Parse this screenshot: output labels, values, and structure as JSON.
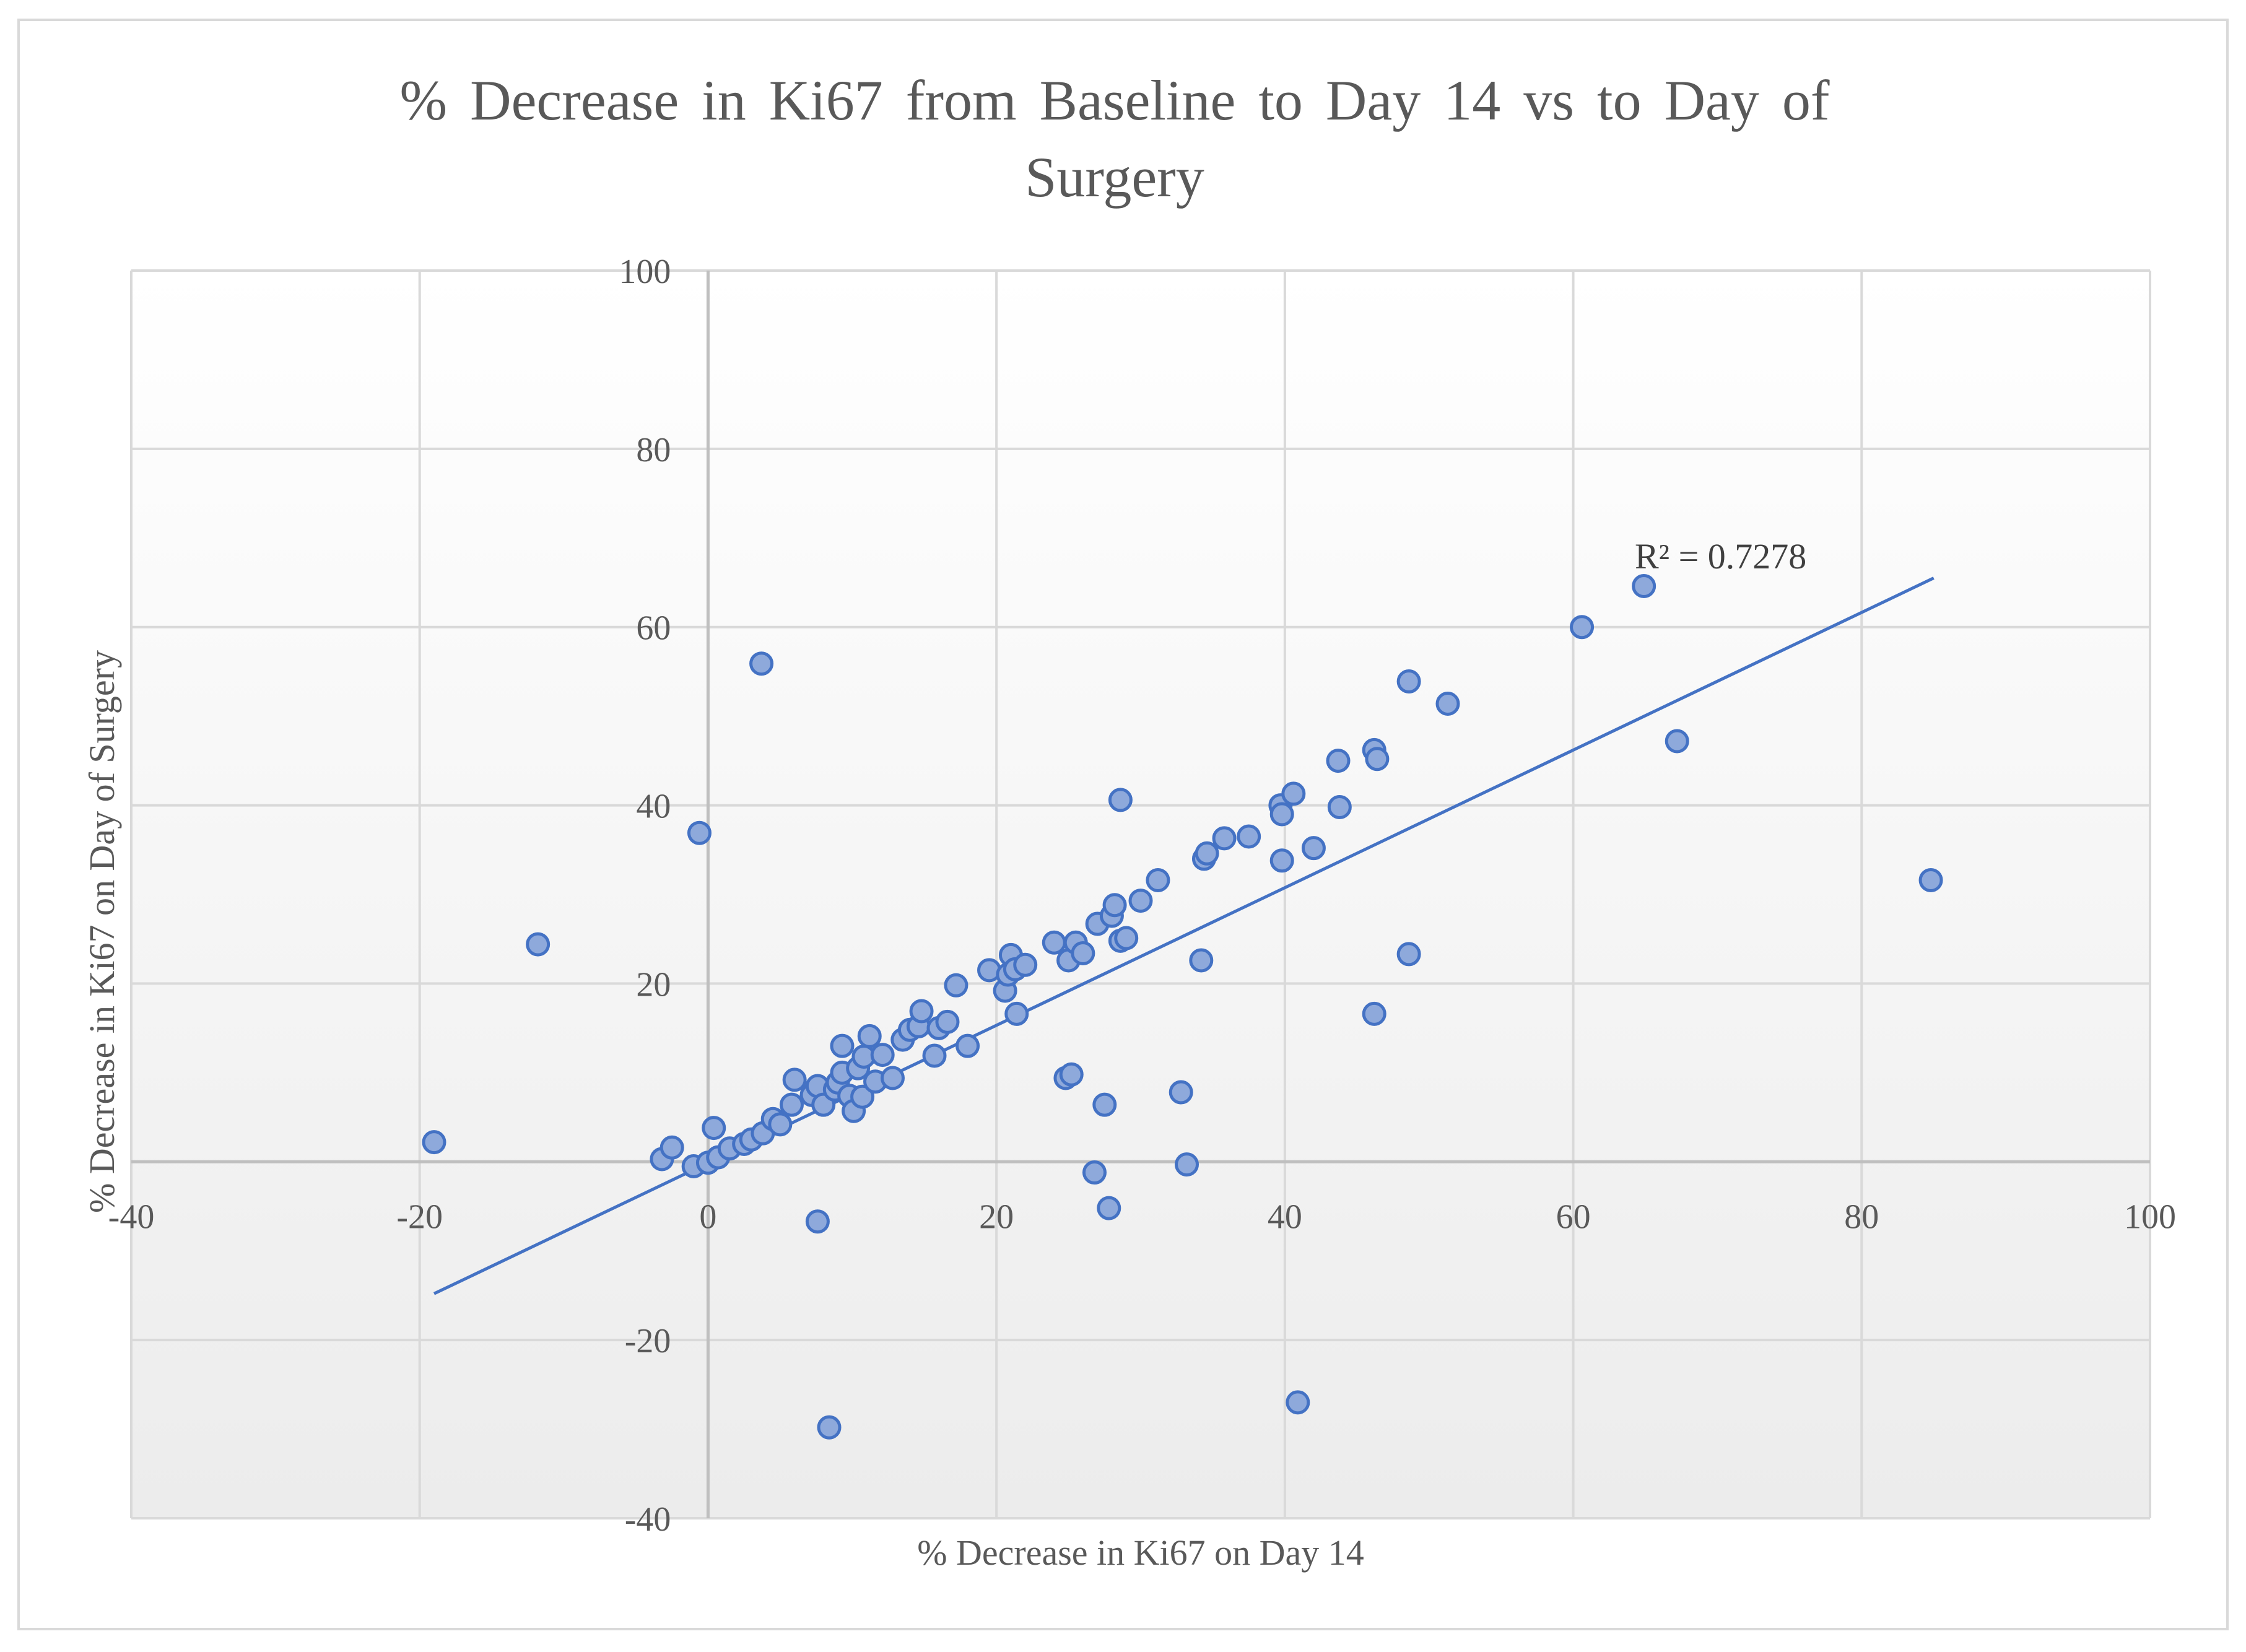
{
  "chart_data": {
    "type": "scatter",
    "title": "% Decrease in Ki67 from Baseline to Day 14 vs to Day of Surgery",
    "title_lines": [
      "% Decrease in Ki67 from Baseline to Day 14 vs to Day of",
      "Surgery"
    ],
    "xlabel": "% Decrease in Ki67 on Day 14",
    "ylabel": "% Decrease in Ki67 on Day of Surgery",
    "xlim": [
      -40,
      100
    ],
    "ylim": [
      -40,
      100
    ],
    "x_ticks": [
      -40,
      -20,
      0,
      20,
      40,
      60,
      80,
      100
    ],
    "y_ticks": [
      -40,
      -20,
      20,
      40,
      60,
      80,
      100
    ],
    "grid": true,
    "colors": {
      "marker_fill": "#8ea9db",
      "marker_stroke": "#4472c4",
      "trendline": "#4472c4",
      "grid": "#d9d9d9",
      "axis": "#bfbfbf"
    },
    "trendline": {
      "type": "linear",
      "x_range": [
        -19,
        85
      ],
      "y_range": [
        -14.8,
        65.5
      ],
      "r2_label": "R² = 0.7278"
    },
    "points": [
      [
        -19,
        2.2
      ],
      [
        -11.8,
        24.4
      ],
      [
        -3.2,
        0.3
      ],
      [
        -2.5,
        1.6
      ],
      [
        -1,
        -0.5
      ],
      [
        -0.6,
        36.9
      ],
      [
        0,
        -0.1
      ],
      [
        0.4,
        3.8
      ],
      [
        0.7,
        0.5
      ],
      [
        1.5,
        1.5
      ],
      [
        2.5,
        2
      ],
      [
        3,
        2.5
      ],
      [
        3.8,
        3.2
      ],
      [
        3.7,
        55.9
      ],
      [
        4.5,
        4.8
      ],
      [
        5,
        4.2
      ],
      [
        5.8,
        6.4
      ],
      [
        6,
        9.2
      ],
      [
        7.2,
        7.5
      ],
      [
        7.6,
        8.5
      ],
      [
        7.6,
        -6.7
      ],
      [
        8,
        6.4
      ],
      [
        8.4,
        -29.8
      ],
      [
        8.8,
        8.1
      ],
      [
        9,
        8.9
      ],
      [
        9.3,
        13
      ],
      [
        9.3,
        10
      ],
      [
        9.8,
        7.4
      ],
      [
        10.1,
        5.7
      ],
      [
        10.4,
        10.5
      ],
      [
        10.7,
        7.3
      ],
      [
        10.8,
        11.8
      ],
      [
        11.2,
        14.1
      ],
      [
        11.6,
        9
      ],
      [
        12.1,
        12
      ],
      [
        12.8,
        9.4
      ],
      [
        13.5,
        13.7
      ],
      [
        14,
        14.8
      ],
      [
        14.6,
        15.2
      ],
      [
        14.8,
        16.9
      ],
      [
        15.7,
        11.9
      ],
      [
        16,
        15
      ],
      [
        16.6,
        15.7
      ],
      [
        17.2,
        19.8
      ],
      [
        18,
        13
      ],
      [
        19.5,
        21.5
      ],
      [
        20.6,
        19.2
      ],
      [
        20.8,
        21
      ],
      [
        21,
        23.2
      ],
      [
        21.3,
        21.6
      ],
      [
        21.4,
        16.6
      ],
      [
        22,
        22.1
      ],
      [
        24,
        24.6
      ],
      [
        24.8,
        9.4
      ],
      [
        25,
        22.6
      ],
      [
        25.2,
        9.8
      ],
      [
        25.5,
        24.6
      ],
      [
        26,
        23.4
      ],
      [
        26.8,
        -1.2
      ],
      [
        27,
        26.7
      ],
      [
        27.5,
        6.4
      ],
      [
        27.8,
        -5.2
      ],
      [
        28,
        27.6
      ],
      [
        28.2,
        28.8
      ],
      [
        28.6,
        40.6
      ],
      [
        28.6,
        24.8
      ],
      [
        29,
        25.1
      ],
      [
        30,
        29.3
      ],
      [
        31.2,
        31.6
      ],
      [
        32.8,
        7.8
      ],
      [
        33.2,
        -0.3
      ],
      [
        34.2,
        22.6
      ],
      [
        34.4,
        34
      ],
      [
        34.6,
        34.6
      ],
      [
        35.8,
        36.3
      ],
      [
        37.5,
        36.5
      ],
      [
        39.7,
        40
      ],
      [
        39.8,
        39
      ],
      [
        39.8,
        33.8
      ],
      [
        40.6,
        41.3
      ],
      [
        40.9,
        -27
      ],
      [
        42,
        35.2
      ],
      [
        43.7,
        45
      ],
      [
        43.8,
        39.8
      ],
      [
        46.2,
        46.2
      ],
      [
        46.2,
        16.6
      ],
      [
        46.4,
        45.2
      ],
      [
        48.6,
        53.9
      ],
      [
        48.6,
        23.3
      ],
      [
        51.3,
        51.4
      ],
      [
        60.6,
        60
      ],
      [
        64.9,
        64.6
      ],
      [
        67.2,
        47.2
      ],
      [
        84.8,
        31.6
      ]
    ]
  }
}
